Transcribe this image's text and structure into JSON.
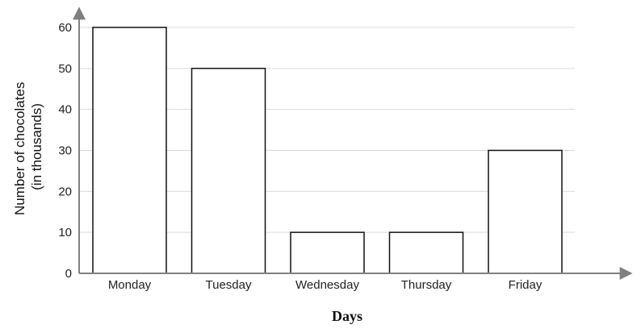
{
  "chart_data": {
    "type": "bar",
    "categories": [
      "Monday",
      "Tuesday",
      "Wednesday",
      "Thursday",
      "Friday"
    ],
    "values": [
      60,
      50,
      10,
      10,
      30
    ],
    "xlabel": "Days",
    "ylabel_lines": [
      "Number of chocolates",
      "(in thousands)"
    ],
    "yticks": [
      0,
      10,
      20,
      30,
      40,
      50,
      60
    ],
    "ylim": [
      0,
      60
    ],
    "grid": true,
    "colors": {
      "bar_fill": "#ffffff",
      "bar_stroke": "#111111",
      "grid": "#d9d9d9",
      "axis": "#808080"
    }
  }
}
